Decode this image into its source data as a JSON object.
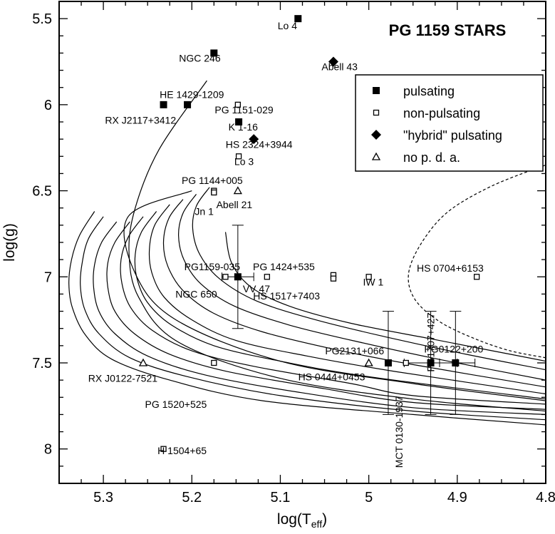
{
  "chart_data": {
    "type": "scatter",
    "title": "PG 1159 STARS",
    "xlabel_main": "log(T",
    "xlabel_sub": "eff",
    "xlabel_close": ")",
    "ylabel": "log(g)",
    "xlim": [
      5.35,
      4.8
    ],
    "ylim": [
      5.4,
      8.2
    ],
    "x_axis_reversed": true,
    "y_axis_reversed": true,
    "grid": false,
    "legend_position": "top-right",
    "xticks": [
      {
        "value": 5.3,
        "label": "5.3"
      },
      {
        "value": 5.2,
        "label": "5.2"
      },
      {
        "value": 5.1,
        "label": "5.1"
      },
      {
        "value": 5.0,
        "label": "5"
      },
      {
        "value": 4.9,
        "label": "4.9"
      },
      {
        "value": 4.8,
        "label": "4.8"
      }
    ],
    "yticks": [
      {
        "value": 5.5,
        "label": "5.5"
      },
      {
        "value": 6.0,
        "label": "6"
      },
      {
        "value": 6.5,
        "label": "6.5"
      },
      {
        "value": 7.0,
        "label": "7"
      },
      {
        "value": 7.5,
        "label": "7.5"
      },
      {
        "value": 8.0,
        "label": "8"
      }
    ],
    "legend": [
      {
        "marker": "filled-square",
        "label": "pulsating"
      },
      {
        "marker": "open-square",
        "label": "non-pulsating"
      },
      {
        "marker": "filled-diamond",
        "label": "\"hybrid\" pulsating"
      },
      {
        "marker": "open-triangle",
        "label": "no p. d. a."
      }
    ],
    "points": [
      {
        "name": "Lo 4",
        "x": 5.08,
        "y": 5.5,
        "marker": "filled-square",
        "label_x": 5.092,
        "label_y": 5.54
      },
      {
        "name": "NGC 246",
        "x": 5.175,
        "y": 5.7,
        "marker": "filled-square",
        "label_x": 5.191,
        "label_y": 5.73
      },
      {
        "name": "Abell 43",
        "x": 5.04,
        "y": 5.75,
        "marker": "filled-diamond",
        "label_x": 5.033,
        "label_y": 5.78
      },
      {
        "name": "HE 1429-1209",
        "x": 5.205,
        "y": 6.0,
        "marker": "filled-square",
        "label_x": 5.2,
        "label_y": 5.94
      },
      {
        "name": "RX J2117+3412",
        "x": 5.232,
        "y": 6.0,
        "marker": "filled-square",
        "label_x": 5.258,
        "label_y": 6.09
      },
      {
        "name": "PG 1151-029",
        "x": 5.148,
        "y": 6.0,
        "marker": "open-square",
        "label_x": 5.141,
        "label_y": 6.03
      },
      {
        "name": "K 1-16",
        "x": 5.147,
        "y": 6.1,
        "marker": "filled-square",
        "label_x": 5.142,
        "label_y": 6.13
      },
      {
        "name": "HS 2324+3944",
        "x": 5.13,
        "y": 6.2,
        "marker": "filled-diamond",
        "label_x": 5.124,
        "label_y": 6.23
      },
      {
        "name": "Lo 3",
        "x": 5.147,
        "y": 6.3,
        "marker": "open-square",
        "label_x": 5.141,
        "label_y": 6.33
      },
      {
        "name": "PG 1144+005",
        "x": 5.175,
        "y": 6.5,
        "marker": "open-square",
        "label_x": 5.177,
        "label_y": 6.44
      },
      {
        "name": "Jn 1",
        "x": 5.175,
        "y": 6.51,
        "marker": "open-square",
        "label_x": 5.186,
        "label_y": 6.62
      },
      {
        "name": "Abell 21",
        "x": 5.148,
        "y": 6.5,
        "marker": "open-triangle",
        "label_x": 5.152,
        "label_y": 6.58
      },
      {
        "name": "PG1159-035",
        "x": 5.148,
        "y": 7.0,
        "marker": "filled-square",
        "label_x": 5.177,
        "label_y": 6.94,
        "xerr": [
          5.166,
          5.13
        ],
        "yerr": [
          6.7,
          7.3
        ]
      },
      {
        "name": "NGC 650",
        "x": 5.162,
        "y": 7.0,
        "marker": "open-square",
        "label_x": 5.195,
        "label_y": 7.1
      },
      {
        "name": "VV 47",
        "x": 5.115,
        "y": 7.0,
        "marker": "open-square",
        "label_x": 5.127,
        "label_y": 7.07
      },
      {
        "name": "PG 1424+535",
        "x": 5.04,
        "y": 6.99,
        "marker": "open-square",
        "label_x": 5.096,
        "label_y": 6.94
      },
      {
        "name": "HS 1517+7403",
        "x": 5.04,
        "y": 7.01,
        "marker": "open-square",
        "label_x": 5.093,
        "label_y": 7.11
      },
      {
        "name": "IW 1",
        "x": 5.0,
        "y": 7.0,
        "marker": "open-square",
        "label_x": 4.995,
        "label_y": 7.03
      },
      {
        "name": "HS 0704+6153",
        "x": 4.878,
        "y": 7.0,
        "marker": "open-square",
        "label_x": 4.908,
        "label_y": 6.95
      },
      {
        "name": "RX J0122-7521",
        "x": 5.255,
        "y": 7.5,
        "marker": "open-triangle",
        "label_x": 5.278,
        "label_y": 7.59
      },
      {
        "name": "PG 1520+525",
        "x": 5.175,
        "y": 7.5,
        "marker": "open-square",
        "label_x": 5.218,
        "label_y": 7.74
      },
      {
        "name": "PG2131+066",
        "x": 4.978,
        "y": 7.5,
        "marker": "filled-square",
        "label_x": 5.016,
        "label_y": 7.43,
        "yerr": [
          7.2,
          7.8
        ]
      },
      {
        "name": "HS 0444+0453",
        "x": 4.958,
        "y": 7.5,
        "marker": "open-square",
        "label_x": 5.042,
        "label_y": 7.58
      },
      {
        "name": "MCT 0130-1937",
        "x": 5.0,
        "y": 7.5,
        "marker": "open-triangle",
        "label_x": 4.962,
        "label_y": 7.88
      },
      {
        "name": "PG1707+427",
        "x": 4.93,
        "y": 7.5,
        "marker": "filled-square",
        "label_x": 4.926,
        "label_y": 7.36,
        "xerr": [
          4.96,
          4.9
        ],
        "yerr": [
          7.2,
          7.8
        ]
      },
      {
        "name": "PG0122+200",
        "x": 4.902,
        "y": 7.5,
        "marker": "filled-square",
        "label_x": 4.904,
        "label_y": 7.42,
        "xerr": [
          4.92,
          4.88
        ],
        "yerr": [
          7.2,
          7.8
        ]
      },
      {
        "name": "H 1504+65",
        "x": 5.232,
        "y": 8.0,
        "marker": "open-square",
        "label_x": 5.211,
        "label_y": 8.01
      }
    ],
    "tracks": [
      [
        [
          5.183,
          5.86
        ],
        [
          5.237,
          6.26
        ],
        [
          5.264,
          6.6
        ],
        [
          5.271,
          6.86
        ],
        [
          5.26,
          7.12
        ],
        [
          5.215,
          7.38
        ],
        [
          5.1,
          7.59
        ],
        [
          4.95,
          7.71
        ],
        [
          4.8,
          7.78
        ]
      ],
      [
        [
          5.2,
          6.5
        ],
        [
          5.272,
          6.65
        ],
        [
          5.264,
          6.98
        ],
        [
          5.218,
          7.25
        ],
        [
          5.1,
          7.49
        ],
        [
          4.95,
          7.62
        ],
        [
          4.8,
          7.72
        ]
      ],
      [
        [
          5.31,
          6.62
        ],
        [
          5.327,
          6.76
        ],
        [
          5.336,
          6.9
        ],
        [
          5.339,
          7.04
        ],
        [
          5.335,
          7.18
        ],
        [
          5.32,
          7.34
        ],
        [
          5.29,
          7.48
        ],
        [
          5.225,
          7.6
        ],
        [
          5.12,
          7.72
        ],
        [
          4.95,
          7.8
        ],
        [
          4.8,
          7.86
        ]
      ],
      [
        [
          5.3,
          6.65
        ],
        [
          5.317,
          6.78
        ],
        [
          5.324,
          6.92
        ],
        [
          5.326,
          7.05
        ],
        [
          5.321,
          7.19
        ],
        [
          5.305,
          7.33
        ],
        [
          5.27,
          7.47
        ],
        [
          5.205,
          7.58
        ],
        [
          5.1,
          7.69
        ],
        [
          4.95,
          7.78
        ],
        [
          4.8,
          7.83
        ]
      ],
      [
        [
          5.285,
          6.68
        ],
        [
          5.302,
          6.8
        ],
        [
          5.31,
          6.93
        ],
        [
          5.311,
          7.06
        ],
        [
          5.305,
          7.2
        ],
        [
          5.287,
          7.33
        ],
        [
          5.25,
          7.46
        ],
        [
          5.185,
          7.57
        ],
        [
          5.08,
          7.67
        ],
        [
          4.95,
          7.76
        ],
        [
          4.8,
          7.8
        ]
      ],
      [
        [
          5.27,
          6.68
        ],
        [
          5.287,
          6.8
        ],
        [
          5.295,
          6.92
        ],
        [
          5.295,
          7.06
        ],
        [
          5.287,
          7.2
        ],
        [
          5.265,
          7.33
        ],
        [
          5.225,
          7.45
        ],
        [
          5.16,
          7.55
        ],
        [
          5.05,
          7.65
        ],
        [
          4.95,
          7.73
        ],
        [
          4.8,
          7.77
        ]
      ],
      [
        [
          5.255,
          6.65
        ],
        [
          5.272,
          6.77
        ],
        [
          5.28,
          6.9
        ],
        [
          5.279,
          7.04
        ],
        [
          5.269,
          7.18
        ],
        [
          5.245,
          7.31
        ],
        [
          5.2,
          7.43
        ],
        [
          5.13,
          7.52
        ],
        [
          5.02,
          7.62
        ],
        [
          4.95,
          7.69
        ],
        [
          4.8,
          7.74
        ]
      ],
      [
        [
          5.24,
          6.62
        ],
        [
          5.257,
          6.74
        ],
        [
          5.264,
          6.87
        ],
        [
          5.262,
          7.01
        ],
        [
          5.25,
          7.15
        ],
        [
          5.223,
          7.28
        ],
        [
          5.175,
          7.4
        ],
        [
          5.1,
          7.49
        ],
        [
          5.0,
          7.58
        ],
        [
          4.8,
          7.71
        ]
      ],
      [
        [
          5.225,
          6.58
        ],
        [
          5.242,
          6.7
        ],
        [
          5.248,
          6.84
        ],
        [
          5.245,
          6.98
        ],
        [
          5.231,
          7.12
        ],
        [
          5.2,
          7.25
        ],
        [
          5.15,
          7.37
        ],
        [
          5.07,
          7.46
        ],
        [
          4.97,
          7.55
        ],
        [
          4.8,
          7.68
        ]
      ],
      [
        [
          5.21,
          6.55
        ],
        [
          5.226,
          6.66
        ],
        [
          5.232,
          6.8
        ],
        [
          5.227,
          6.94
        ],
        [
          5.21,
          7.08
        ],
        [
          5.176,
          7.21
        ],
        [
          5.12,
          7.32
        ],
        [
          5.04,
          7.42
        ],
        [
          4.95,
          7.51
        ],
        [
          4.8,
          7.64
        ]
      ],
      [
        [
          5.195,
          6.52
        ],
        [
          5.21,
          6.63
        ],
        [
          5.215,
          6.76
        ],
        [
          5.209,
          6.9
        ],
        [
          5.19,
          7.04
        ],
        [
          5.152,
          7.17
        ],
        [
          5.09,
          7.28
        ],
        [
          5.01,
          7.38
        ],
        [
          4.92,
          7.48
        ],
        [
          4.8,
          7.6
        ]
      ],
      [
        [
          5.18,
          6.48
        ],
        [
          5.195,
          6.59
        ],
        [
          5.199,
          6.72
        ],
        [
          5.191,
          6.87
        ],
        [
          5.169,
          7.01
        ],
        [
          5.127,
          7.14
        ],
        [
          5.06,
          7.25
        ],
        [
          4.98,
          7.35
        ],
        [
          4.89,
          7.45
        ],
        [
          4.8,
          7.54
        ]
      ],
      [
        [
          5.162,
          6.74
        ],
        [
          5.155,
          6.92
        ],
        [
          5.133,
          7.06
        ],
        [
          5.09,
          7.17
        ],
        [
          5.02,
          7.27
        ],
        [
          4.93,
          7.36
        ],
        [
          4.86,
          7.43
        ],
        [
          4.8,
          7.49
        ]
      ]
    ],
    "instability_strip": [
      [
        4.8,
        6.35
      ],
      [
        4.86,
        6.47
      ],
      [
        4.91,
        6.62
      ],
      [
        4.94,
        6.8
      ],
      [
        4.955,
        6.98
      ],
      [
        4.948,
        7.13
      ],
      [
        4.92,
        7.26
      ],
      [
        4.88,
        7.36
      ],
      [
        4.84,
        7.43
      ],
      [
        4.8,
        7.47
      ]
    ]
  }
}
